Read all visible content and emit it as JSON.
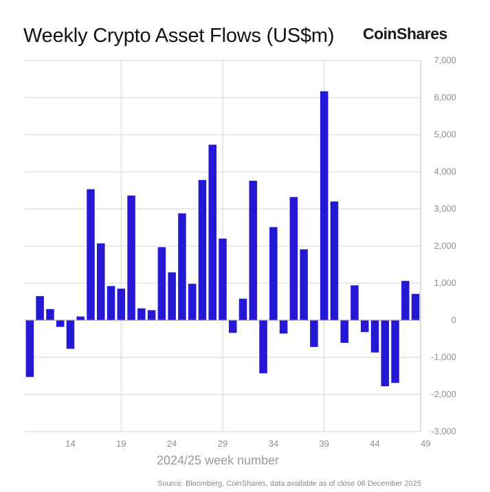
{
  "chart_data": {
    "type": "bar",
    "title": "Weekly Crypto Asset Flows (US$m)",
    "brand": "CoinShares",
    "xlabel": "2024/25 week number",
    "ylabel": "",
    "source": "Source: Bloomberg, CoinShares, data available as of close 06 December 2025",
    "ylim": [
      -3000,
      7000
    ],
    "y_ticks": [
      7000,
      6000,
      5000,
      4000,
      3000,
      2000,
      1000,
      0,
      -1000,
      -2000,
      -3000
    ],
    "y_tick_labels": [
      "7,000",
      "6,000",
      "5,000",
      "4,000",
      "3,000",
      "2,000",
      "1,000",
      "0",
      "-1,000",
      "-2,000",
      "-3,000"
    ],
    "x_tick_labels": [
      "14",
      "19",
      "24",
      "29",
      "34",
      "39",
      "44",
      "49"
    ],
    "x_tick_positions": [
      4,
      9,
      14,
      19,
      24,
      29,
      34,
      39
    ],
    "x_gridline_positions": [
      9,
      19,
      29
    ],
    "values": [
      -1530,
      650,
      300,
      -180,
      -770,
      100,
      3530,
      2070,
      920,
      850,
      3360,
      320,
      270,
      1970,
      1290,
      2880,
      980,
      3780,
      4730,
      2200,
      -340,
      580,
      3760,
      -1430,
      2510,
      -360,
      3320,
      1910,
      -720,
      6170,
      3200,
      -610,
      940,
      -320,
      -870,
      -1780,
      -1690,
      1060,
      710
    ],
    "colors": {
      "bar": "#2418d4",
      "grid": "#d4d4d4",
      "zero_line": "#9a9a9a"
    }
  }
}
